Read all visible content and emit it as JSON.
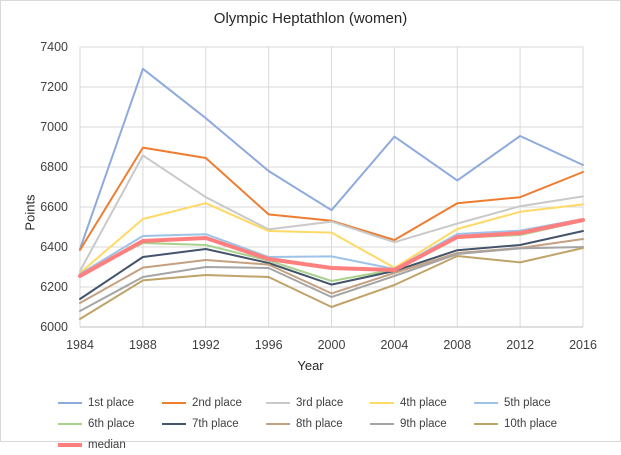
{
  "chart_data": {
    "type": "line",
    "title": "Olympic Heptathlon (women)",
    "xlabel": "Year",
    "ylabel": "Points",
    "categories": [
      "1984",
      "1988",
      "1992",
      "1996",
      "2000",
      "2004",
      "2008",
      "2012",
      "2016"
    ],
    "ylim": [
      6000,
      7400
    ],
    "yticks": [
      "6000",
      "6200",
      "6400",
      "6600",
      "6800",
      "7000",
      "7200",
      "7400"
    ],
    "grid": true,
    "legend_position": "bottom",
    "series": [
      {
        "name": "1st place",
        "color": "#8faadc",
        "values": [
          6390,
          7291,
          7044,
          6780,
          6584,
          6952,
          6733,
          6955,
          6810
        ]
      },
      {
        "name": "2nd place",
        "color": "#ed7d31",
        "values": [
          6385,
          6897,
          6845,
          6563,
          6531,
          6435,
          6619,
          6649,
          6775
        ]
      },
      {
        "name": "3rd place",
        "color": "#c9c9c9",
        "values": [
          6280,
          6858,
          6649,
          6488,
          6527,
          6424,
          6517,
          6604,
          6653
        ]
      },
      {
        "name": "4th place",
        "color": "#ffd966",
        "values": [
          6270,
          6540,
          6619,
          6480,
          6472,
          6296,
          6490,
          6576,
          6613
        ]
      },
      {
        "name": "5th place",
        "color": "#9dc3e6",
        "values": [
          6265,
          6455,
          6464,
          6350,
          6353,
          6290,
          6465,
          6482,
          6540
        ]
      },
      {
        "name": "6th place",
        "color": "#a9d18e",
        "values": [
          6260,
          6420,
          6410,
          6332,
          6230,
          6287,
          6445,
          6460,
          6530
        ]
      },
      {
        "name": "7th place",
        "color": "#44546a",
        "values": [
          6140,
          6350,
          6390,
          6320,
          6212,
          6280,
          6384,
          6410,
          6480
        ]
      },
      {
        "name": "8th place",
        "color": "#c5a080",
        "values": [
          6120,
          6297,
          6335,
          6312,
          6168,
          6270,
          6370,
          6395,
          6440
        ]
      },
      {
        "name": "9th place",
        "color": "#a5a5a5",
        "values": [
          6080,
          6250,
          6300,
          6295,
          6150,
          6255,
          6365,
          6393,
          6400
        ]
      },
      {
        "name": "10th place",
        "color": "#bfa46a",
        "values": [
          6040,
          6233,
          6260,
          6250,
          6100,
          6210,
          6355,
          6323,
          6395
        ]
      },
      {
        "name": "median",
        "color": "#ff7f7f",
        "thick": true,
        "values": [
          6255,
          6430,
          6445,
          6340,
          6295,
          6285,
          6450,
          6470,
          6535
        ]
      }
    ]
  }
}
